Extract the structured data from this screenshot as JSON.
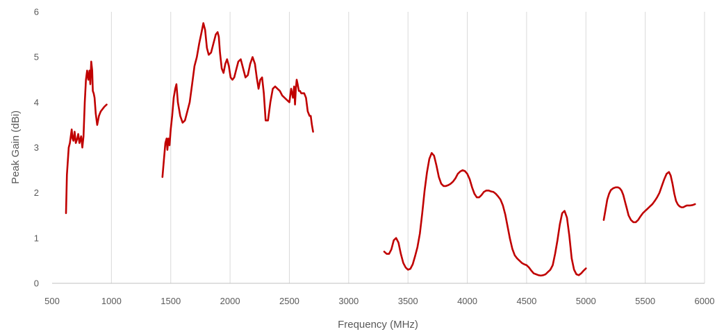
{
  "chart_data": {
    "type": "line",
    "title": "",
    "xlabel": "Frequency (MHz)",
    "ylabel": "Peak Gain (dBi)",
    "xlim": [
      500,
      6000
    ],
    "ylim": [
      0,
      6
    ],
    "xticks": [
      500,
      1000,
      1500,
      2000,
      2500,
      3000,
      3500,
      4000,
      4500,
      5000,
      5500,
      6000
    ],
    "yticks": [
      0,
      1,
      2,
      3,
      4,
      5,
      6
    ],
    "grid": "vertical",
    "legend": "none",
    "color": "#c00000",
    "segments": [
      {
        "x": [
          617,
          625,
          640,
          650,
          660,
          665,
          672,
          680,
          690,
          700,
          712,
          720,
          730,
          745,
          755,
          765,
          775,
          785,
          795,
          805,
          815,
          822,
          830,
          838,
          843,
          850,
          858,
          868,
          880,
          895,
          910,
          925,
          940,
          960
        ],
        "y": [
          1.55,
          2.4,
          3.0,
          3.1,
          3.3,
          3.4,
          3.2,
          3.15,
          3.35,
          3.1,
          3.2,
          3.3,
          3.1,
          3.25,
          3.0,
          3.25,
          4.0,
          4.5,
          4.7,
          4.5,
          4.7,
          4.4,
          4.9,
          4.7,
          4.25,
          4.2,
          4.1,
          3.75,
          3.5,
          3.7,
          3.8,
          3.85,
          3.9,
          3.95
        ]
      },
      {
        "x": [
          1430,
          1445,
          1455,
          1465,
          1472,
          1480,
          1490,
          1500,
          1512,
          1525,
          1538,
          1548,
          1560,
          1580,
          1600,
          1620,
          1640,
          1660,
          1680,
          1700,
          1720,
          1740,
          1760,
          1775,
          1790,
          1805,
          1820,
          1840,
          1860,
          1880,
          1895,
          1905,
          1915,
          1930,
          1945,
          1960,
          1975,
          1990,
          2005,
          2020,
          2035,
          2050,
          2070,
          2090,
          2110,
          2130,
          2150,
          2170,
          2190,
          2210,
          2225,
          2240,
          2255,
          2270,
          2285,
          2300,
          2320,
          2340,
          2360,
          2380,
          2400,
          2420,
          2440,
          2460,
          2480,
          2500,
          2515,
          2530,
          2540,
          2548,
          2555,
          2562,
          2570,
          2580,
          2590,
          2600,
          2612,
          2625,
          2640,
          2655,
          2670,
          2680,
          2690,
          2700
        ],
        "y": [
          2.35,
          2.8,
          3.1,
          3.2,
          2.95,
          3.2,
          3.05,
          3.4,
          3.7,
          4.1,
          4.3,
          4.4,
          4.0,
          3.7,
          3.55,
          3.6,
          3.8,
          4.0,
          4.4,
          4.8,
          5.0,
          5.3,
          5.55,
          5.75,
          5.6,
          5.2,
          5.05,
          5.1,
          5.3,
          5.5,
          5.55,
          5.45,
          5.1,
          4.75,
          4.65,
          4.85,
          4.95,
          4.8,
          4.55,
          4.5,
          4.55,
          4.7,
          4.9,
          4.95,
          4.75,
          4.55,
          4.6,
          4.85,
          5.0,
          4.85,
          4.55,
          4.3,
          4.5,
          4.55,
          4.2,
          3.6,
          3.6,
          4.0,
          4.3,
          4.35,
          4.3,
          4.25,
          4.15,
          4.1,
          4.05,
          4.0,
          4.3,
          4.1,
          4.35,
          3.95,
          4.3,
          4.5,
          4.4,
          4.25,
          4.25,
          4.2,
          4.2,
          4.2,
          4.1,
          3.8,
          3.7,
          3.7,
          3.5,
          3.35
        ]
      },
      {
        "x": [
          3300,
          3320,
          3340,
          3360,
          3380,
          3400,
          3420,
          3440,
          3460,
          3480,
          3500,
          3520,
          3540,
          3560,
          3580,
          3600,
          3620,
          3640,
          3660,
          3680,
          3700,
          3720,
          3740,
          3760,
          3780,
          3800,
          3820,
          3840,
          3860,
          3880,
          3900,
          3920,
          3940,
          3960,
          3980,
          4000,
          4020,
          4040,
          4060,
          4080,
          4100,
          4120,
          4140,
          4160,
          4180,
          4200,
          4220,
          4240,
          4260,
          4280,
          4300,
          4320,
          4340,
          4360,
          4380,
          4400,
          4420,
          4440,
          4460,
          4480,
          4500,
          4520,
          4540,
          4560,
          4580,
          4600,
          4620,
          4640,
          4660,
          4680,
          4700,
          4720,
          4740,
          4760,
          4780,
          4800,
          4820,
          4840,
          4860,
          4880,
          4900,
          4920,
          4940,
          4960,
          4980,
          5000
        ],
        "y": [
          0.7,
          0.65,
          0.65,
          0.75,
          0.95,
          1.0,
          0.9,
          0.65,
          0.45,
          0.35,
          0.3,
          0.32,
          0.42,
          0.6,
          0.8,
          1.1,
          1.55,
          2.05,
          2.45,
          2.75,
          2.88,
          2.82,
          2.6,
          2.35,
          2.2,
          2.15,
          2.15,
          2.17,
          2.2,
          2.25,
          2.32,
          2.42,
          2.47,
          2.5,
          2.48,
          2.42,
          2.3,
          2.12,
          1.98,
          1.9,
          1.9,
          1.95,
          2.02,
          2.05,
          2.05,
          2.03,
          2.02,
          1.98,
          1.92,
          1.85,
          1.72,
          1.52,
          1.25,
          0.98,
          0.76,
          0.62,
          0.55,
          0.5,
          0.45,
          0.42,
          0.4,
          0.35,
          0.28,
          0.22,
          0.2,
          0.18,
          0.17,
          0.18,
          0.2,
          0.25,
          0.3,
          0.4,
          0.65,
          0.95,
          1.3,
          1.55,
          1.6,
          1.45,
          1.05,
          0.55,
          0.3,
          0.2,
          0.18,
          0.22,
          0.28,
          0.33
        ]
      },
      {
        "x": [
          5150,
          5160,
          5170,
          5180,
          5195,
          5210,
          5230,
          5250,
          5270,
          5285,
          5300,
          5315,
          5330,
          5345,
          5360,
          5380,
          5400,
          5420,
          5440,
          5460,
          5480,
          5500,
          5520,
          5540,
          5560,
          5580,
          5600,
          5620,
          5640,
          5660,
          5680,
          5700,
          5715,
          5730,
          5745,
          5760,
          5775,
          5790,
          5805,
          5820,
          5835,
          5850,
          5865,
          5880,
          5900,
          5920
        ],
        "y": [
          1.4,
          1.55,
          1.7,
          1.85,
          1.98,
          2.06,
          2.1,
          2.12,
          2.12,
          2.1,
          2.05,
          1.95,
          1.8,
          1.65,
          1.5,
          1.4,
          1.35,
          1.35,
          1.4,
          1.48,
          1.55,
          1.6,
          1.65,
          1.7,
          1.75,
          1.82,
          1.9,
          2.0,
          2.15,
          2.3,
          2.42,
          2.46,
          2.38,
          2.2,
          1.98,
          1.82,
          1.74,
          1.7,
          1.68,
          1.68,
          1.7,
          1.72,
          1.72,
          1.72,
          1.73,
          1.75
        ]
      }
    ]
  }
}
